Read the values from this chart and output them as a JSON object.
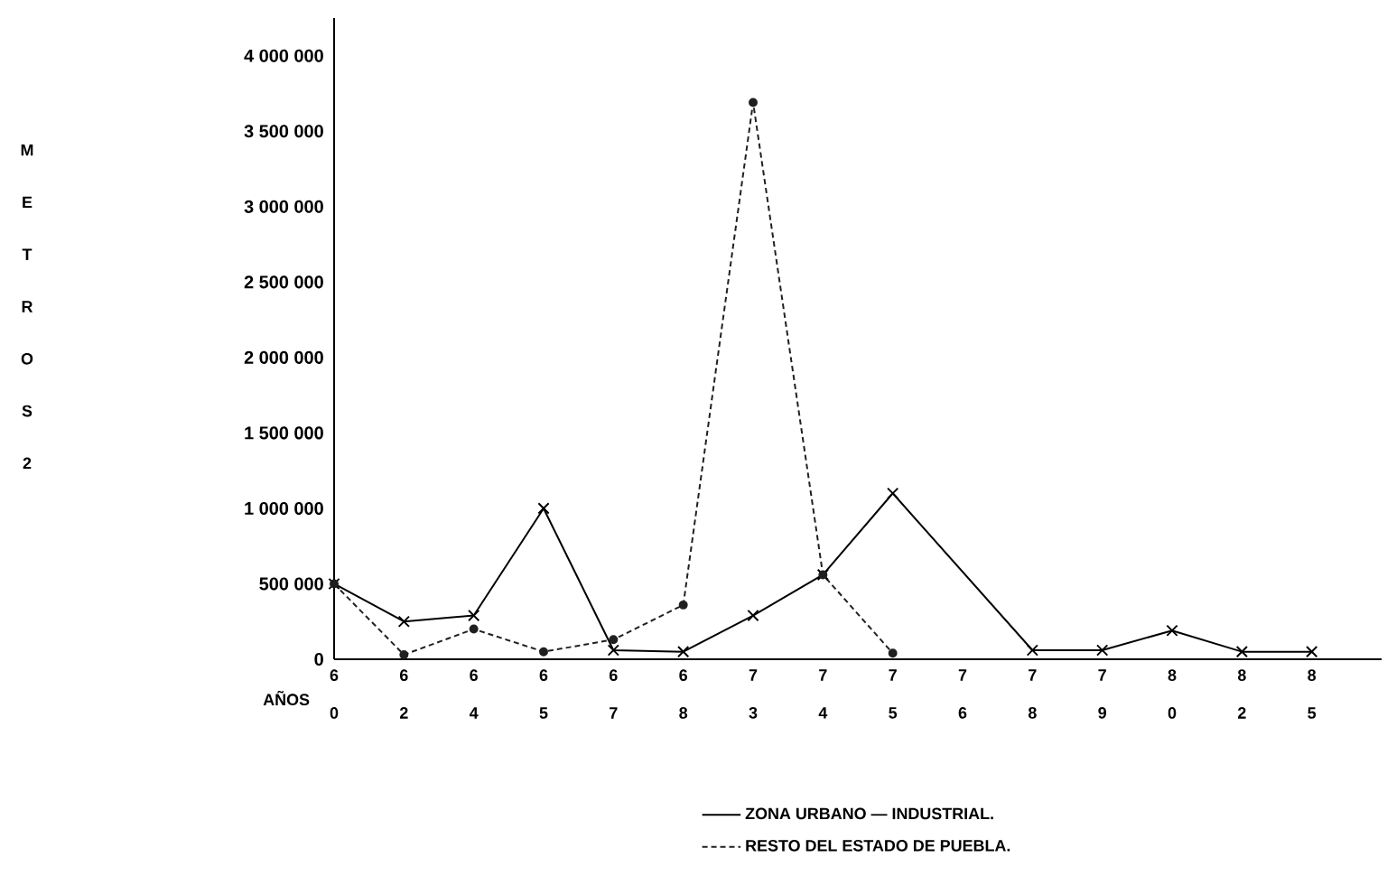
{
  "chart_data": {
    "type": "line",
    "xlabel": "AÑOS",
    "ylabel": "M E T R O S 2",
    "categories": [
      "6 0",
      "6 2",
      "6 4",
      "6 5",
      "6 7",
      "6 8",
      "7 3",
      "7 4",
      "7 5",
      "7 6",
      "7 8",
      "7 9",
      "8 0",
      "8 2",
      "8 5"
    ],
    "series": [
      {
        "name": "ZONA URBANO — INDUSTRIAL.",
        "color": "#000000",
        "line_style": "solid",
        "marker": "cross",
        "values": [
          500000,
          250000,
          290000,
          1000000,
          60000,
          50000,
          290000,
          560000,
          1100000,
          null,
          60000,
          60000,
          190000,
          50000,
          50000
        ]
      },
      {
        "name": "RESTO DEL ESTADO DE PUEBLA.",
        "color": "#202020",
        "line_style": "dashed",
        "marker": "circle",
        "values": [
          500000,
          30000,
          200000,
          50000,
          130000,
          360000,
          3690000,
          560000,
          40000,
          null,
          null,
          null,
          null,
          null,
          null
        ]
      }
    ],
    "ylim": [
      0,
      4250000
    ],
    "yticks": [
      {
        "value": 0,
        "label": "0"
      },
      {
        "value": 500000,
        "label": "500 000"
      },
      {
        "value": 1000000,
        "label": "1 000 000"
      },
      {
        "value": 1500000,
        "label": "1 500 000"
      },
      {
        "value": 2000000,
        "label": "2 000 000"
      },
      {
        "value": 2500000,
        "label": "2 500 000"
      },
      {
        "value": 3000000,
        "label": "3 000 000"
      },
      {
        "value": 3500000,
        "label": "3 500 000"
      },
      {
        "value": 4000000,
        "label": "4 000 000"
      }
    ],
    "grid": false,
    "legend": "bottom"
  }
}
